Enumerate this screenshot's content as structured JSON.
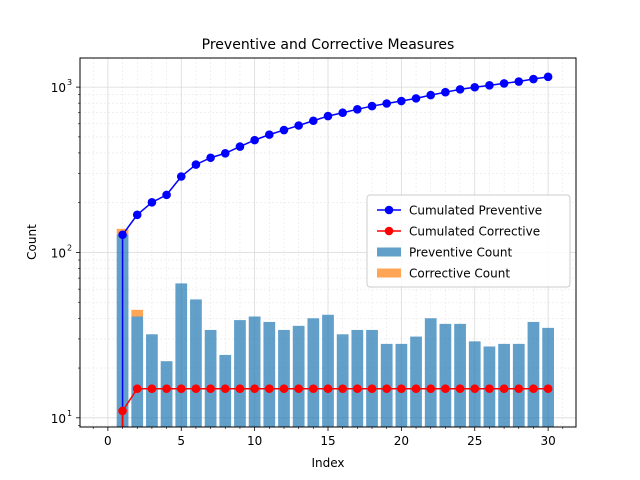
{
  "chart_data": {
    "type": "bar",
    "title": "Preventive and Corrective Measures",
    "xlabel": "Index",
    "ylabel": "Count",
    "x": [
      1,
      2,
      3,
      4,
      5,
      6,
      7,
      8,
      9,
      10,
      11,
      12,
      13,
      14,
      15,
      16,
      17,
      18,
      19,
      20,
      21,
      22,
      23,
      24,
      25,
      26,
      27,
      28,
      29,
      30
    ],
    "xlim": [
      -1.9,
      31.9
    ],
    "ylim": [
      8.8,
      1500
    ],
    "yscale": "log",
    "x_ticks": [
      0,
      5,
      10,
      15,
      20,
      25,
      30
    ],
    "y_ticks": [
      {
        "value": 10,
        "label": "10"
      },
      {
        "value": 100,
        "label": "10"
      },
      {
        "value": 1000,
        "label": "10"
      }
    ],
    "y_tick_exponents": [
      "1",
      "2",
      "3"
    ],
    "grid": true,
    "legend_position": "center-right",
    "series": [
      {
        "name": "Cumulated Preventive",
        "kind": "line",
        "color": "#0000ff",
        "values": [
          128,
          169,
          201,
          223,
          288,
          340,
          374,
          398,
          437,
          478,
          516,
          550,
          586,
          626,
          668,
          700,
          734,
          768,
          796,
          824,
          855,
          895,
          932,
          969,
          998,
          1025,
          1053,
          1081,
          1119,
          1154
        ]
      },
      {
        "name": "Cumulated Corrective",
        "kind": "line",
        "color": "#ff0000",
        "values": [
          11,
          15,
          15,
          15,
          15,
          15,
          15,
          15,
          15,
          15,
          15,
          15,
          15,
          15,
          15,
          15,
          15,
          15,
          15,
          15,
          15,
          15,
          15,
          15,
          15,
          15,
          15,
          15,
          15,
          15
        ]
      },
      {
        "name": "Preventive Count",
        "kind": "bar",
        "color": "#1f77b4",
        "values": [
          128,
          41,
          32,
          22,
          65,
          52,
          34,
          24,
          39,
          41,
          38,
          34,
          36,
          40,
          42,
          32,
          34,
          34,
          28,
          28,
          31,
          40,
          37,
          37,
          29,
          27,
          28,
          28,
          38,
          35
        ]
      },
      {
        "name": "Corrective Count",
        "kind": "bar",
        "color": "#ff7f0e",
        "values": [
          11,
          4,
          0,
          0,
          0,
          0,
          0,
          0,
          0,
          0,
          0,
          0,
          0,
          0,
          0,
          0,
          0,
          0,
          0,
          0,
          0,
          0,
          0,
          0,
          0,
          0,
          0,
          0,
          0,
          0
        ]
      }
    ]
  }
}
